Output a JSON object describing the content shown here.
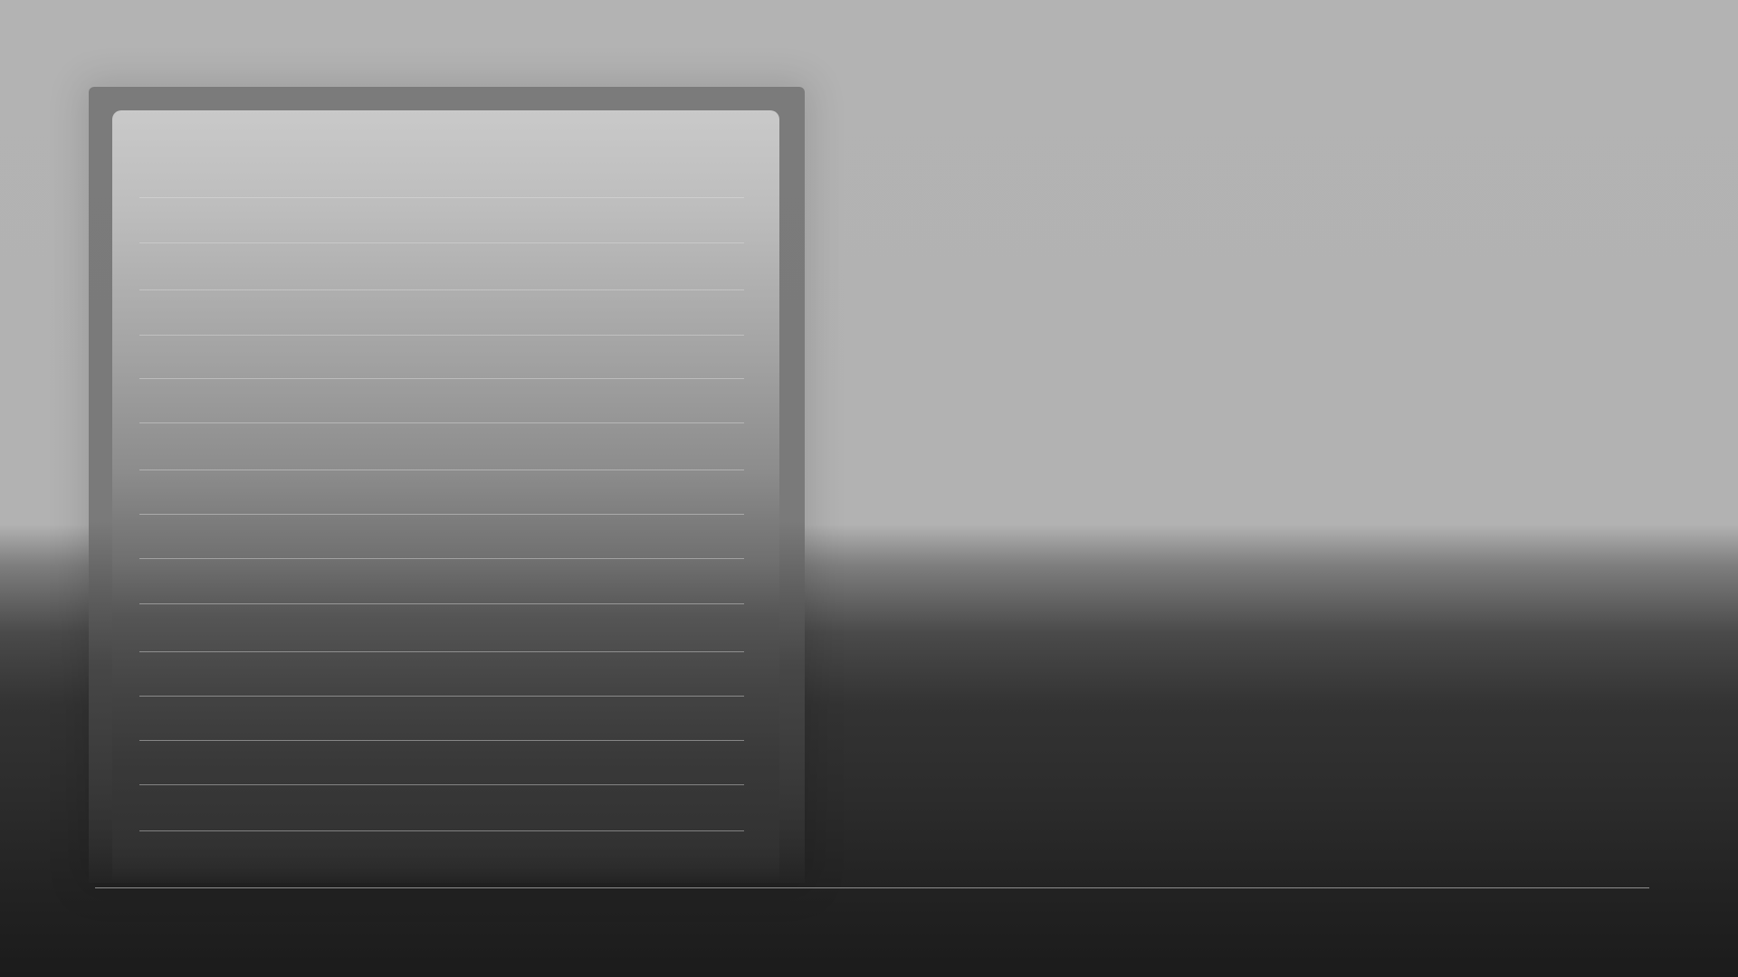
{
  "panel": {
    "ruled_line_count": 15
  },
  "colors": {
    "wall": "#b3b3b3",
    "floor": "#2b2b2b",
    "frame": "#7b7b7b",
    "panel_top": "#c9c9c9",
    "baseline": "#8e8e8e"
  }
}
